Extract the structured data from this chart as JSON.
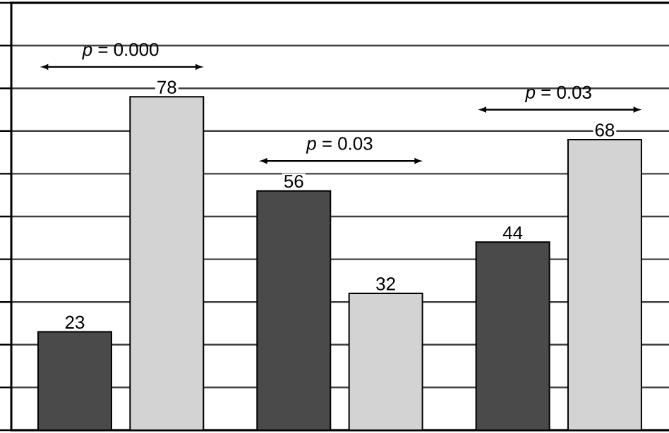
{
  "chart_data": {
    "type": "bar",
    "categories": [
      null,
      null,
      null
    ],
    "series": [
      {
        "color": "#4a4a4a",
        "values": [
          23,
          56,
          44
        ]
      },
      {
        "color": "#d3d3d3",
        "values": [
          78,
          32,
          68
        ]
      }
    ],
    "ylim": [
      0,
      100
    ],
    "yticks": [
      {
        "value": 0,
        "label": null
      },
      {
        "value": 10,
        "label": null
      },
      {
        "value": 20,
        "label": null
      },
      {
        "value": 30,
        "label": null
      },
      {
        "value": 40,
        "label": null
      },
      {
        "value": 50,
        "label": null
      },
      {
        "value": 60,
        "label": null
      },
      {
        "value": 70,
        "label": null
      },
      {
        "value": 80,
        "label": null
      },
      {
        "value": 90,
        "label": null
      },
      {
        "value": 100,
        "label": null
      }
    ],
    "tick_labels": false,
    "grid": "y",
    "data_labels": true,
    "annotations": [
      "*p* = 0.000",
      "*p* = 0.03",
      "*p* = 0.03"
    ]
  }
}
